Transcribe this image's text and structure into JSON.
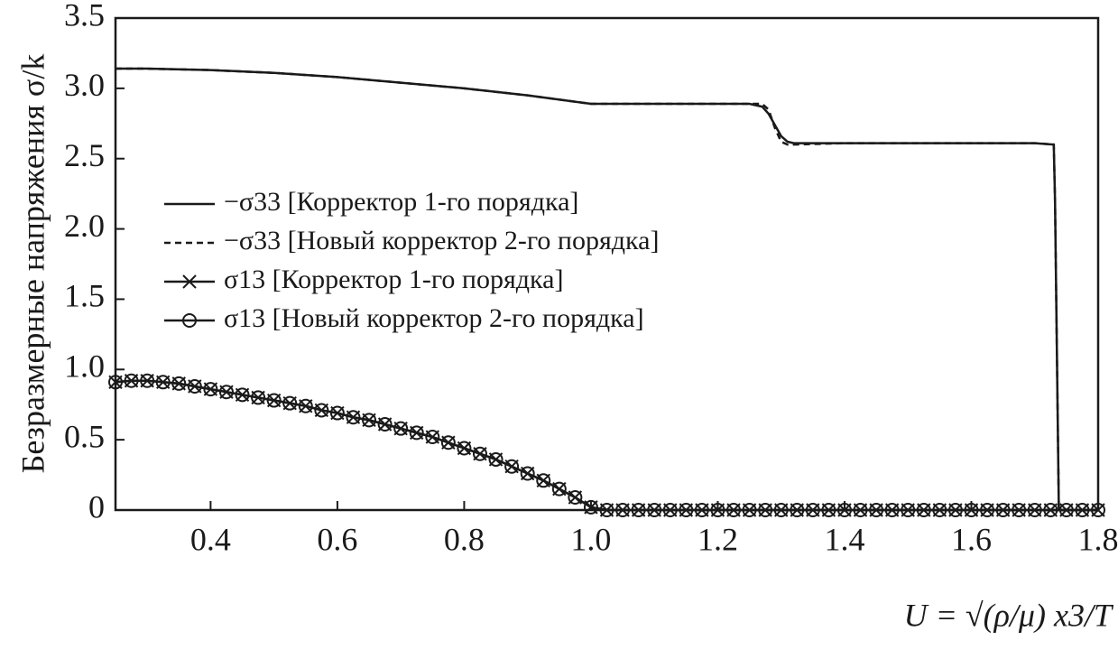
{
  "chart_data": {
    "type": "line",
    "y_label": "Безразмерные напряжения σ/k",
    "x_label": "U = √(ρ/μ) x3/T",
    "xlim": [
      0.25,
      1.8
    ],
    "ylim": [
      0,
      3.5
    ],
    "xticks": [
      0.4,
      0.6,
      0.8,
      {
        "value": 1.0,
        "label": "1.0"
      },
      1.2,
      1.4,
      1.6,
      1.8
    ],
    "yticks": [
      0,
      0.5,
      {
        "value": 1.0,
        "label": "1.0"
      },
      1.5,
      {
        "value": 2.0,
        "label": "2.0"
      },
      2.5,
      {
        "value": 3.0,
        "label": "3.0"
      },
      3.5
    ],
    "legend": "upper left",
    "series": [
      {
        "name": "−σ33 [Корректор 1-го порядка]",
        "color": "#1a1a1a",
        "linestyle": "solid",
        "marker": "none",
        "x": [
          0.25,
          0.3,
          0.4,
          0.5,
          0.6,
          0.7,
          0.8,
          0.9,
          1.0,
          1.1,
          1.2,
          1.25,
          1.27,
          1.28,
          1.29,
          1.3,
          1.31,
          1.32,
          1.4,
          1.5,
          1.6,
          1.7,
          1.73,
          1.732,
          1.738,
          1.8
        ],
        "values": [
          3.14,
          3.14,
          3.13,
          3.11,
          3.08,
          3.04,
          3.0,
          2.95,
          2.89,
          2.89,
          2.89,
          2.89,
          2.87,
          2.82,
          2.74,
          2.66,
          2.62,
          2.61,
          2.61,
          2.61,
          2.61,
          2.61,
          2.6,
          2.2,
          0,
          0
        ]
      },
      {
        "name": "−σ33 [Новый корректор 2-го порядка]",
        "color": "#1a1a1a",
        "linestyle": "dashed",
        "marker": "none",
        "x": [
          0.25,
          0.3,
          0.4,
          0.5,
          0.6,
          0.7,
          0.8,
          0.9,
          1.0,
          1.1,
          1.2,
          1.25,
          1.27,
          1.28,
          1.29,
          1.3,
          1.31,
          1.32,
          1.4,
          1.5,
          1.6,
          1.7,
          1.73,
          1.732,
          1.738,
          1.8
        ],
        "values": [
          3.14,
          3.14,
          3.13,
          3.11,
          3.08,
          3.04,
          3.0,
          2.95,
          2.89,
          2.89,
          2.89,
          2.89,
          2.89,
          2.85,
          2.72,
          2.62,
          2.6,
          2.6,
          2.61,
          2.61,
          2.61,
          2.61,
          2.6,
          2.2,
          0,
          0
        ]
      },
      {
        "name": "σ13 [Корректор 1-го порядка]",
        "color": "#1a1a1a",
        "linestyle": "solid",
        "marker": "x",
        "x": [
          0.25,
          0.275,
          0.3,
          0.325,
          0.35,
          0.375,
          0.4,
          0.425,
          0.45,
          0.475,
          0.5,
          0.525,
          0.55,
          0.575,
          0.6,
          0.625,
          0.65,
          0.675,
          0.7,
          0.725,
          0.75,
          0.775,
          0.8,
          0.825,
          0.85,
          0.875,
          0.9,
          0.925,
          0.95,
          0.975,
          1.0,
          1.025,
          1.05,
          1.075,
          1.1,
          1.125,
          1.15,
          1.175,
          1.2,
          1.225,
          1.25,
          1.275,
          1.3,
          1.325,
          1.35,
          1.375,
          1.4,
          1.425,
          1.45,
          1.475,
          1.5,
          1.525,
          1.55,
          1.575,
          1.6,
          1.625,
          1.65,
          1.675,
          1.7,
          1.725,
          1.75,
          1.775,
          1.8
        ],
        "values": [
          0.91,
          0.92,
          0.92,
          0.91,
          0.9,
          0.88,
          0.86,
          0.84,
          0.82,
          0.8,
          0.78,
          0.76,
          0.74,
          0.71,
          0.69,
          0.66,
          0.64,
          0.61,
          0.58,
          0.55,
          0.52,
          0.48,
          0.44,
          0.4,
          0.36,
          0.31,
          0.26,
          0.21,
          0.15,
          0.09,
          0.02,
          0,
          0,
          0,
          0,
          0,
          0,
          0,
          0,
          0,
          0,
          0,
          0,
          0,
          0,
          0,
          0,
          0,
          0,
          0,
          0,
          0,
          0,
          0,
          0,
          0,
          0,
          0,
          0,
          0,
          0,
          0,
          0
        ]
      },
      {
        "name": "σ13 [Новый корректор 2-го порядка]",
        "color": "#1a1a1a",
        "linestyle": "solid",
        "marker": "o",
        "x": [
          0.25,
          0.275,
          0.3,
          0.325,
          0.35,
          0.375,
          0.4,
          0.425,
          0.45,
          0.475,
          0.5,
          0.525,
          0.55,
          0.575,
          0.6,
          0.625,
          0.65,
          0.675,
          0.7,
          0.725,
          0.75,
          0.775,
          0.8,
          0.825,
          0.85,
          0.875,
          0.9,
          0.925,
          0.95,
          0.975,
          1.0,
          1.025,
          1.05,
          1.075,
          1.1,
          1.125,
          1.15,
          1.175,
          1.2,
          1.225,
          1.25,
          1.275,
          1.3,
          1.325,
          1.35,
          1.375,
          1.4,
          1.425,
          1.45,
          1.475,
          1.5,
          1.525,
          1.55,
          1.575,
          1.6,
          1.625,
          1.65,
          1.675,
          1.7,
          1.725,
          1.75,
          1.775,
          1.8
        ],
        "values": [
          0.91,
          0.92,
          0.92,
          0.91,
          0.9,
          0.88,
          0.86,
          0.84,
          0.82,
          0.8,
          0.78,
          0.76,
          0.74,
          0.71,
          0.69,
          0.66,
          0.64,
          0.61,
          0.58,
          0.55,
          0.52,
          0.48,
          0.44,
          0.4,
          0.36,
          0.31,
          0.26,
          0.21,
          0.15,
          0.09,
          0.02,
          0,
          0,
          0,
          0,
          0,
          0,
          0,
          0,
          0,
          0,
          0,
          0,
          0,
          0,
          0,
          0,
          0,
          0,
          0,
          0,
          0,
          0,
          0,
          0,
          0,
          0,
          0,
          0,
          0,
          0,
          0,
          0
        ]
      }
    ]
  }
}
